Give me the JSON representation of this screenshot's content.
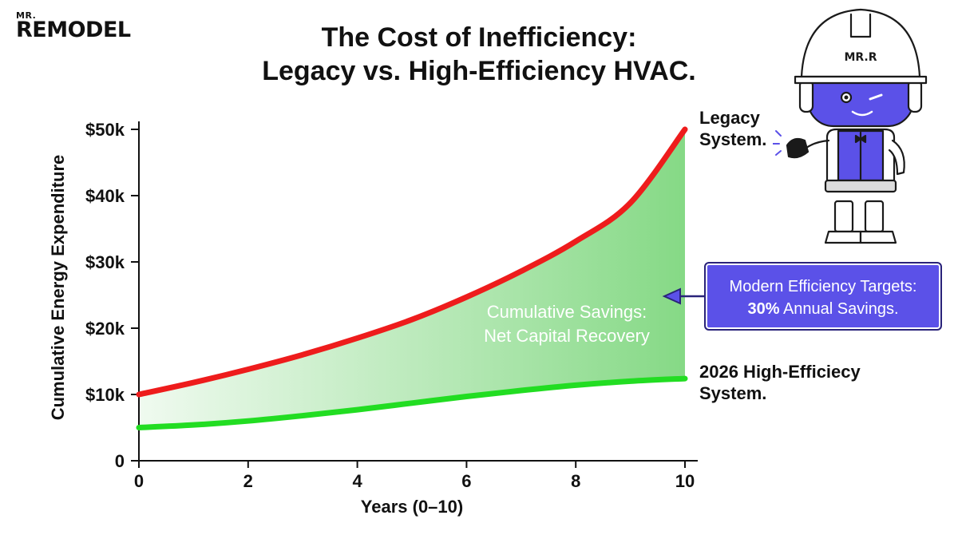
{
  "logo": {
    "top": "MR.",
    "main": "REMODEL"
  },
  "title": {
    "line1": "The Cost of Inefficiency:",
    "line2": "Legacy vs. High-Efficiency HVAC."
  },
  "labels": {
    "legacy_line1": "Legacy",
    "legacy_line2": "System.",
    "efficient_line1": "2026 High-Efficiecy",
    "efficient_line2": "System.",
    "savings_line1": "Cumulative Savings:",
    "savings_line2": "Net Capital Recovery"
  },
  "callout": {
    "line1": "Modern Efficiency Targets:",
    "line2_bold": "30%",
    "line2_rest": " Annual Savings."
  },
  "mascot": {
    "helmet_text": "MR.R"
  },
  "colors": {
    "legacy": "#ee1c1c",
    "efficient": "#22dd22",
    "savings_fill": "#7fd77f",
    "callout_bg": "#5b51e8",
    "mascot_purple": "#5b51e8"
  },
  "chart_data": {
    "type": "line",
    "xlabel": "Years (0–10)",
    "ylabel": "Cumulative Energy Expenditure",
    "xlim": [
      0,
      10
    ],
    "ylim": [
      0,
      50000
    ],
    "x_ticks": [
      0,
      2,
      4,
      6,
      8,
      10
    ],
    "x_tick_labels": [
      "0",
      "2",
      "4",
      "6",
      "8",
      "10"
    ],
    "y_ticks": [
      0,
      10000,
      20000,
      30000,
      40000,
      50000
    ],
    "y_tick_labels": [
      "0",
      "$10k",
      "$20k",
      "$30k",
      "$40k",
      "$50k"
    ],
    "grid": false,
    "legend": "none",
    "series": [
      {
        "name": "Legacy System.",
        "color": "#ee1c1c",
        "x": [
          0,
          1,
          2,
          3,
          4,
          5,
          6,
          7,
          8,
          9,
          10
        ],
        "values": [
          10000,
          11800,
          13800,
          16000,
          18500,
          21300,
          24700,
          28600,
          33100,
          38900,
          50000
        ]
      },
      {
        "name": "2026 High-Efficiecy System.",
        "color": "#22dd22",
        "x": [
          0,
          1,
          2,
          3,
          4,
          5,
          6,
          7,
          8,
          9,
          10
        ],
        "values": [
          5000,
          5400,
          6000,
          6800,
          7700,
          8700,
          9700,
          10600,
          11400,
          12000,
          12400
        ]
      }
    ],
    "annotations": [
      "Cumulative Savings:",
      "Net Capital Recovery",
      "Legacy System.",
      "2026 High-Efficiecy System."
    ]
  }
}
